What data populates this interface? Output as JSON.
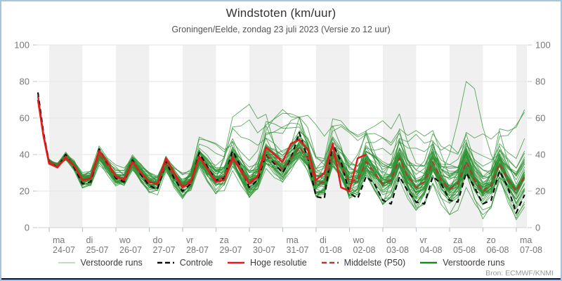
{
  "frame": {
    "border_color": "#a6c3e3",
    "bottom_bar_color": "#0b0f2e",
    "background": "#ffffff"
  },
  "header": {
    "title": "Windstoten (km/uur)",
    "subtitle": "Groningen/Eelde, zondag 23 juli 2023 (Versie zo 12 uur)"
  },
  "source_label": "Bron: ECMWF/KNMI",
  "legend": [
    {
      "label": "Verstoorde runs",
      "color": "#afd3a5",
      "dash": false,
      "width": 1.6
    },
    {
      "label": "Controle",
      "color": "#0d0d0d",
      "dash": true,
      "width": 2.4
    },
    {
      "label": "Hoge resolutie",
      "color": "#e41a1c",
      "dash": false,
      "width": 2.6
    },
    {
      "label": "Middelste (P50)",
      "color": "#b03a30",
      "dash": true,
      "width": 2.4
    },
    {
      "label": "Verstoorde runs",
      "color": "#1a8a1a",
      "dash": false,
      "width": 2.4
    }
  ],
  "chart_data": {
    "type": "line",
    "title": "Windstoten (km/uur)",
    "subtitle": "Groningen/Eelde, zondag 23 juli 2023 (Versie zo 12 uur)",
    "ylabel": "km/uur",
    "ylim": [
      0,
      100
    ],
    "yticks": [
      0,
      20,
      40,
      60,
      80,
      100
    ],
    "grid": true,
    "legend_position": "bottom",
    "x_start_label": "zo 23-07 (run 12 uur)",
    "step_hours": 6,
    "x_days": [
      {
        "dow": "ma",
        "date": "24-07"
      },
      {
        "dow": "di",
        "date": "25-07"
      },
      {
        "dow": "wo",
        "date": "26-07"
      },
      {
        "dow": "do",
        "date": "27-07"
      },
      {
        "dow": "vr",
        "date": "28-07"
      },
      {
        "dow": "za",
        "date": "29-07"
      },
      {
        "dow": "zo",
        "date": "30-07"
      },
      {
        "dow": "ma",
        "date": "31-07"
      },
      {
        "dow": "di",
        "date": "01-08"
      },
      {
        "dow": "wo",
        "date": "02-08"
      },
      {
        "dow": "do",
        "date": "03-08"
      },
      {
        "dow": "vr",
        "date": "04-08"
      },
      {
        "dow": "za",
        "date": "05-08"
      },
      {
        "dow": "zo",
        "date": "06-08"
      },
      {
        "dow": "ma",
        "date": "07-08"
      }
    ],
    "series": [
      {
        "name": "Controle",
        "role": "control",
        "color": "#0d0d0d",
        "dash": true,
        "width": 2.2,
        "values": [
          74,
          52,
          36,
          33,
          40,
          33,
          24,
          25,
          43,
          35,
          27,
          25,
          37,
          29,
          23,
          21,
          36,
          27,
          20,
          24,
          41,
          33,
          26,
          27,
          42,
          33,
          22,
          26,
          40,
          35,
          30,
          38,
          52,
          38,
          17,
          16,
          46,
          36,
          19,
          16,
          28,
          24,
          15,
          13,
          28,
          20,
          14,
          13,
          28,
          24,
          15,
          14,
          30,
          22,
          13,
          15,
          31,
          22,
          8,
          18
        ]
      },
      {
        "name": "Hoge resolutie",
        "role": "hres",
        "color": "#e41a1c",
        "dash": false,
        "width": 2.5,
        "values": [
          70,
          50,
          35,
          33,
          38,
          34,
          26,
          27,
          42,
          36,
          28,
          26,
          36,
          30,
          25,
          24,
          38,
          30,
          22,
          25,
          39,
          32,
          25,
          26,
          38,
          31,
          24,
          28,
          44,
          40,
          36,
          46,
          48,
          43,
          26,
          30,
          46,
          22,
          20,
          38,
          40
        ]
      },
      {
        "name": "Middelste (P50)",
        "role": "p50",
        "color": "#b03a30",
        "dash": true,
        "width": 2.2,
        "values": [
          72,
          51,
          36,
          34,
          39,
          34,
          26,
          27,
          40,
          34,
          28,
          27,
          36,
          30,
          25,
          24,
          35,
          28,
          23,
          26,
          38,
          32,
          26,
          28,
          39,
          32,
          25,
          28,
          40,
          36,
          32,
          38,
          44,
          38,
          24,
          25,
          40,
          34,
          25,
          26,
          36,
          30,
          24,
          26,
          38,
          28,
          22,
          25,
          36,
          26,
          21,
          24,
          36,
          26,
          20,
          23,
          35,
          26,
          20,
          28
        ]
      }
    ],
    "ensemble": {
      "name": "Verstoorde runs",
      "member_count": 50,
      "color": "#2d9132",
      "opacity": 0.78,
      "width": 0.9,
      "envelope_max_per_day": [
        75,
        46,
        52,
        47,
        46,
        50,
        56,
        65,
        66,
        62,
        63,
        60,
        67,
        80,
        67,
        57
      ],
      "envelope_min_per_day": [
        70,
        30,
        18,
        20,
        16,
        14,
        18,
        15,
        18,
        8,
        10,
        8,
        8,
        8,
        8,
        7
      ]
    },
    "plot_style": {
      "band_gray": "#f0f0f0",
      "grid_color": "#e6e6e6",
      "axis_line_color": "#d5dae2",
      "tick_color": "#b9c3d2",
      "label_color": "#777777"
    }
  }
}
